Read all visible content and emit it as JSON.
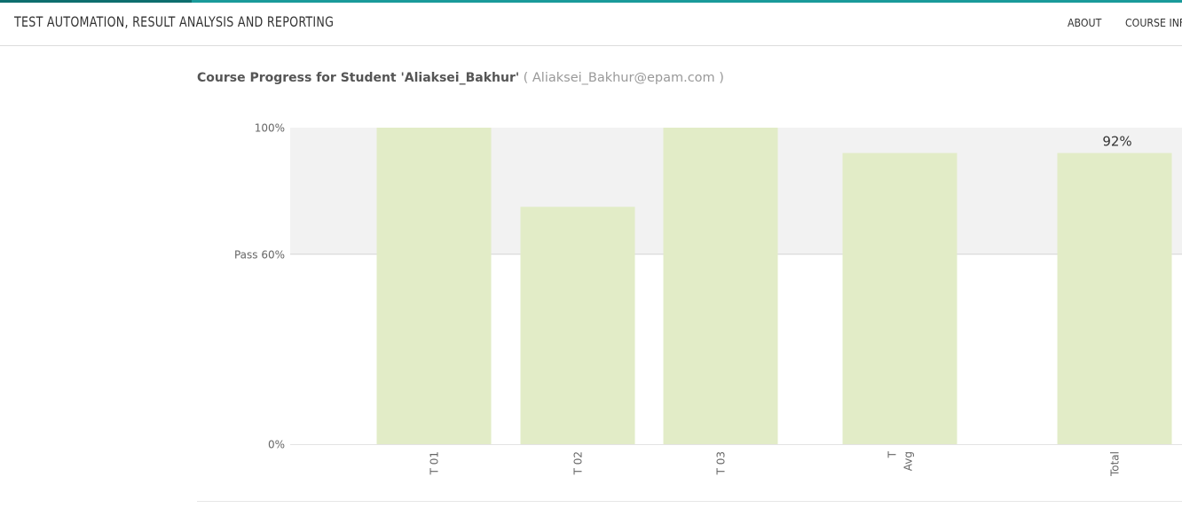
{
  "header": {
    "brand": "TEST AUTOMATION, RESULT ANALYSIS AND REPORTING",
    "nav": {
      "about": "ABOUT",
      "course_info": "COURSE INFO"
    }
  },
  "main": {
    "title_bold": "Course Progress for Student 'Aliaksei_Bakhur'",
    "title_email": "( Aliaksei_Bakhur@epam.com )"
  },
  "colors": {
    "accent": "#1a9a9a",
    "bar": "#e2ecc7",
    "pass_zone": "#f2f2f2"
  },
  "chart_data": {
    "type": "bar",
    "categories": [
      "T 01",
      "T 02",
      "T 03",
      "T\nAvg",
      "Total"
    ],
    "values": [
      100,
      75,
      100,
      92,
      92
    ],
    "data_labels": [
      "",
      "",
      "",
      "",
      "92%"
    ],
    "yticks": [
      {
        "value": 100,
        "label": "100%"
      },
      {
        "value": 60,
        "label": "Pass 60%"
      },
      {
        "value": 0,
        "label": "0%"
      }
    ],
    "ylim": [
      0,
      100
    ],
    "pass_threshold": 60,
    "title": "",
    "xlabel": "",
    "ylabel": ""
  }
}
